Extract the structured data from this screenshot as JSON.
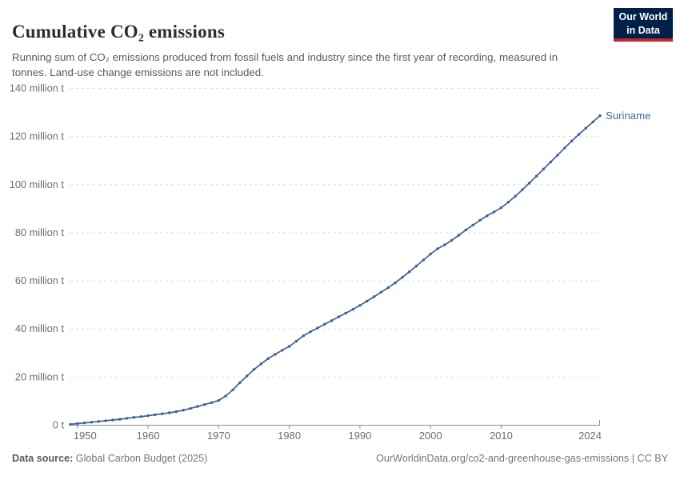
{
  "header": {
    "title": "Cumulative CO₂ emissions",
    "subtitle": "Running sum of CO₂ emissions produced from fossil fuels and industry since the first year of recording, measured in tonnes. Land-use change emissions are not included."
  },
  "logo": {
    "line1": "Our World",
    "line2": "in Data"
  },
  "chart_data": {
    "type": "line",
    "title": "Cumulative CO₂ emissions",
    "entity": "Suriname",
    "unit": "million tonnes",
    "xlabel": "",
    "ylabel": "",
    "xlim": [
      1949,
      2024
    ],
    "ylim": [
      0,
      140
    ],
    "grid": "horizontal-dashed",
    "legend_position": "end-of-line-label",
    "marker": "point-per-year",
    "x_ticks": [
      {
        "year": 1950,
        "label": "1950"
      },
      {
        "year": 1960,
        "label": "1960"
      },
      {
        "year": 1970,
        "label": "1970"
      },
      {
        "year": 1980,
        "label": "1980"
      },
      {
        "year": 1990,
        "label": "1990"
      },
      {
        "year": 2000,
        "label": "2000"
      },
      {
        "year": 2010,
        "label": "2010"
      },
      {
        "year": 2024,
        "label": "2024"
      }
    ],
    "y_ticks": [
      {
        "value": 0,
        "label": "0 t"
      },
      {
        "value": 20,
        "label": "20 million t"
      },
      {
        "value": 40,
        "label": "40 million t"
      },
      {
        "value": 60,
        "label": "60 million t"
      },
      {
        "value": 80,
        "label": "80 million t"
      },
      {
        "value": 100,
        "label": "100 million t"
      },
      {
        "value": 120,
        "label": "120 million t"
      },
      {
        "value": 140,
        "label": "140 million t"
      }
    ],
    "x": [
      1949,
      1950,
      1951,
      1952,
      1953,
      1954,
      1955,
      1956,
      1957,
      1958,
      1959,
      1960,
      1961,
      1962,
      1963,
      1964,
      1965,
      1966,
      1967,
      1968,
      1969,
      1970,
      1971,
      1972,
      1973,
      1974,
      1975,
      1976,
      1977,
      1978,
      1979,
      1980,
      1981,
      1982,
      1983,
      1984,
      1985,
      1986,
      1987,
      1988,
      1989,
      1990,
      1991,
      1992,
      1993,
      1994,
      1995,
      1996,
      1997,
      1998,
      1999,
      2000,
      2001,
      2002,
      2003,
      2004,
      2005,
      2006,
      2007,
      2008,
      2009,
      2010,
      2011,
      2012,
      2013,
      2014,
      2015,
      2016,
      2017,
      2018,
      2019,
      2020,
      2021,
      2022,
      2023,
      2024
    ],
    "values": [
      0.2,
      0.5,
      0.8,
      1.1,
      1.4,
      1.7,
      2.0,
      2.3,
      2.7,
      3.1,
      3.4,
      3.8,
      4.2,
      4.6,
      5.0,
      5.5,
      6.1,
      6.8,
      7.6,
      8.4,
      9.2,
      10.1,
      12.0,
      14.5,
      17.5,
      20.3,
      23.0,
      25.3,
      27.5,
      29.3,
      31.0,
      32.6,
      34.8,
      37.0,
      38.7,
      40.2,
      41.8,
      43.3,
      44.9,
      46.4,
      48.0,
      49.6,
      51.4,
      53.2,
      55.1,
      57.0,
      59.0,
      61.3,
      63.6,
      66.0,
      68.5,
      71.0,
      73.2,
      74.8,
      76.7,
      78.8,
      81.0,
      83.0,
      85.0,
      86.9,
      88.5,
      90.2,
      92.5,
      95.0,
      97.7,
      100.5,
      103.4,
      106.3,
      109.2,
      112.1,
      115.1,
      118.0,
      120.7,
      123.3,
      125.9,
      128.5
    ]
  },
  "colors": {
    "line": "#3e5f99",
    "entity_label": "#4066a5",
    "grid": "#dedede",
    "axis": "#8c8c8c",
    "tick_text": "#6e6e6e",
    "title": "#2d2d2d",
    "subtitle": "#5a5a5a",
    "footer": "#757575",
    "logo_bg": "#002147",
    "logo_red": "#c4262e"
  },
  "footer": {
    "data_source_label": "Data source:",
    "data_source_value": " Global Carbon Budget (2025)",
    "link": "OurWorldinData.org/co2-and-greenhouse-gas-emissions",
    "license_suffix": " | CC BY"
  }
}
